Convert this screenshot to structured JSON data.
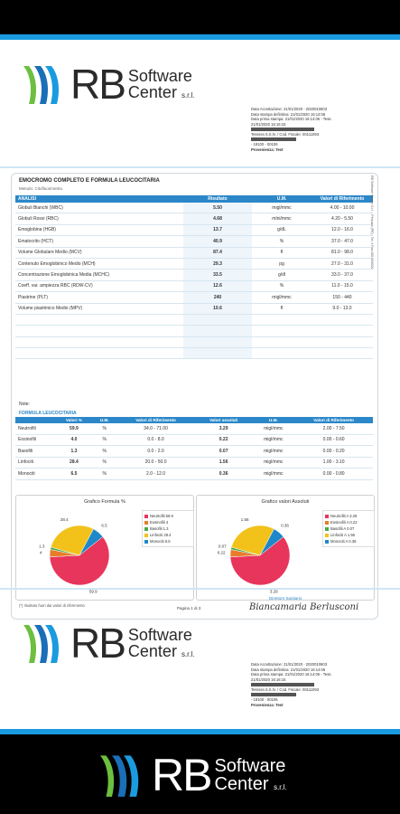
{
  "brand": {
    "rb": "RB",
    "line1": "Software",
    "line2": "Center",
    "srl": "s.r.l."
  },
  "header_info": {
    "lines": [
      "Data Accettazione: 21/01/2020 - 2020010603",
      "Data stampa definitiva: 21/01/2020 16:14:06",
      "Data prima stampa: 21/01/2020 16:14:06 - Tess.",
      "21/01/2020 16:16:15"
    ],
    "fiscal": "Tessera S.S.N. / Cod. Fiscale: 00111093",
    "addr": "- 18100 - 00106",
    "provenance": "Provenienza: Test"
  },
  "report": {
    "title": "EMOCROMO COMPLETO E FORMULA LEUCOCITARIA",
    "subtitle": "Metodo: Citofluorimetria",
    "columns": [
      "ANALISI",
      "Risultato",
      "U.M.",
      "Valori di Riferimento"
    ],
    "rows": [
      {
        "name": "Globuli Bianchi (WBC)",
        "res": "5.50",
        "um": "migl/mmc",
        "ref": "4.00 - 10.00"
      },
      {
        "name": "Globuli Rossi (RBC)",
        "res": "4.68",
        "um": "mlni/mmc",
        "ref": "4.20 - 5.50"
      },
      {
        "name": "Emoglobina (HGB)",
        "res": "13.7",
        "um": "g/dL",
        "ref": "12.0 - 16.0"
      },
      {
        "name": "Ematocrito (HCT)",
        "res": "40.9",
        "um": "%",
        "ref": "37.0 - 47.0"
      },
      {
        "name": "Volume Globulare Medio (MCV)",
        "res": "87.4",
        "um": "fl",
        "ref": "81.0 - 98.0"
      },
      {
        "name": "Contenuto Emoglobinico Medio (MCH)",
        "res": "29.3",
        "um": "pg",
        "ref": "27.0 - 31.0"
      },
      {
        "name": "Concentrazione Emoglobinica Media (MCHC)",
        "res": "33.5",
        "um": "g/dl",
        "ref": "33.0 - 37.0"
      },
      {
        "name": "Coeff. var. ampiezza RBC (RDW-CV)",
        "res": "12.6",
        "um": "%",
        "ref": "11.0 - 15.0"
      },
      {
        "name": "Piastrine (PLT)",
        "res": "240",
        "um": "migl/mmc",
        "ref": "150 - 440"
      },
      {
        "name": "Volume piastrinico Medio (MPV)",
        "res": "10.6",
        "um": "fl",
        "ref": "9.0 - 13.0"
      }
    ],
    "note_label": "Note:",
    "formula_title": "FORMULA LEUCOCITARIA",
    "formula_columns": [
      "",
      "Valori %",
      "U.M.",
      "Valori di Riferimento",
      "Valori assoluti",
      "U.M.",
      "Valori di Riferimento"
    ],
    "formula_rows": [
      {
        "name": "Neutrofili",
        "pct": "59.9",
        "um": "%",
        "ref": "34.0 - 71.00",
        "abs": "3.29",
        "um2": "migl/mmc",
        "ref2": "2.00 - 7.50"
      },
      {
        "name": "Eosinofili",
        "pct": "4.0",
        "um": "%",
        "ref": "0.0 - 8.0",
        "abs": "0.22",
        "um2": "migl/mmc",
        "ref2": "0.00 - 0.60"
      },
      {
        "name": "Basofili",
        "pct": "1.3",
        "um": "%",
        "ref": "0.0 - 2.0",
        "abs": "0.07",
        "um2": "migl/mmc",
        "ref2": "0.00 - 0.20"
      },
      {
        "name": "Linfociti",
        "pct": "28.4",
        "um": "%",
        "ref": "20.0 - 50.0",
        "abs": "1.56",
        "um2": "migl/mmc",
        "ref2": "1.00 - 3.10"
      },
      {
        "name": "Monociti",
        "pct": "6.5",
        "um": "%",
        "ref": "2.0 - 12.0",
        "abs": "0.36",
        "um2": "migl/mmc",
        "ref2": "0.00 - 0.80"
      }
    ],
    "footnote": "(*) risultato fuori dai valori di riferimento",
    "page": "Pagina 1 di 3",
    "signer_label": "Direttore Sanitario",
    "signature": "Biancamaria Berlusconi",
    "side_text": "RB Software Center S.r.l. - Pescara (PE) - Tel. e Fax 085 000000"
  },
  "chart_data": [
    {
      "type": "pie",
      "title": "Grafico Formula %",
      "categories": [
        "Neutrofili 59.9",
        "Eosinofili 4",
        "Basofili 1.3",
        "Linfociti 28.4",
        "Monociti 6.5"
      ],
      "values": [
        59.9,
        4.0,
        1.3,
        28.4,
        6.5
      ],
      "data_labels": [
        "59.9",
        "4",
        "1.3",
        "28.4",
        "6.5"
      ],
      "colors": [
        "#e8355c",
        "#e87c2a",
        "#4aa84a",
        "#f2c21a",
        "#1e88c8"
      ],
      "legend": "right"
    },
    {
      "type": "pie",
      "title": "Grafico valori Assoluti",
      "categories": [
        "Neutrofili A 3.29",
        "Eosinofili A 0.22",
        "Basofili A 0.07",
        "Linfociti A 1.56",
        "Monociti A 0.36"
      ],
      "values": [
        3.29,
        0.22,
        0.07,
        1.56,
        0.36
      ],
      "data_labels": [
        "3.29",
        "0.22",
        "0.07",
        "1.56",
        "0.36"
      ],
      "colors": [
        "#e8355c",
        "#e87c2a",
        "#4aa84a",
        "#f2c21a",
        "#1e88c8"
      ],
      "legend": "right"
    }
  ],
  "colors": {
    "accent": "#2b87c8",
    "topline": "#1a9be0"
  }
}
